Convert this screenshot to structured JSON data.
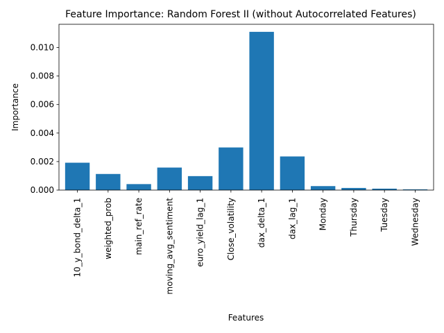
{
  "chart_data": {
    "type": "bar",
    "title": "Feature Importance: Random Forest II (without Autocorrelated Features)",
    "xlabel": "Features",
    "ylabel": "Importance",
    "categories": [
      "10_y_bond_delta_1",
      "weighted_prob",
      "main_ref_rate",
      "moving_avg_sentiment",
      "euro_yield_lag_1",
      "Close_volatility",
      "dax_delta_1",
      "dax_lag_1",
      "Monday",
      "Thursday",
      "Tuesday",
      "Wednesday"
    ],
    "values": [
      0.00192,
      0.00113,
      0.00042,
      0.00158,
      0.00098,
      0.00299,
      0.0111,
      0.00236,
      0.00028,
      0.00015,
      0.0001,
      5e-05
    ],
    "ylim": [
      0,
      0.01163
    ],
    "yticks": [
      0.0,
      0.002,
      0.004,
      0.006,
      0.008,
      0.01
    ],
    "ytick_labels": [
      "0.000",
      "0.002",
      "0.004",
      "0.006",
      "0.008",
      "0.010"
    ],
    "bar_color": "#1f77b4",
    "grid": false,
    "legend": "none"
  }
}
